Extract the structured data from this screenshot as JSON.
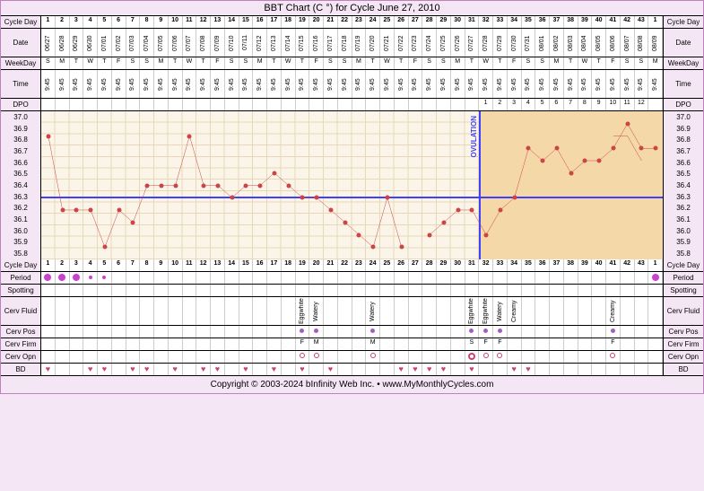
{
  "title": "BBT Chart (C °) for Cycle June 27, 2010",
  "footer": "Copyright © 2003-2024 bInfinity Web Inc.   •   www.MyMonthlyCycles.com",
  "rowLabels": {
    "cycleDay": "Cycle Day",
    "date": "Date",
    "weekday": "WeekDay",
    "time": "Time",
    "dpo": "DPO",
    "period": "Period",
    "spotting": "Spotting",
    "cervFluid": "Cerv Fluid",
    "cervPos": "Cerv Pos",
    "cervFirm": "Cerv Firm",
    "cervOpn": "Cerv Opn",
    "bd": "BD"
  },
  "yAxis": {
    "values": [
      "37.0",
      "36.9",
      "36.8",
      "36.7",
      "36.6",
      "36.5",
      "36.4",
      "36.3",
      "36.2",
      "36.1",
      "36.0",
      "35.9",
      "35.8"
    ],
    "min": 35.8,
    "max": 37.0
  },
  "cycleDays": [
    1,
    2,
    3,
    4,
    5,
    6,
    7,
    8,
    9,
    10,
    11,
    12,
    13,
    14,
    15,
    16,
    17,
    18,
    19,
    20,
    21,
    22,
    23,
    24,
    25,
    26,
    27,
    28,
    29,
    30,
    31,
    32,
    33,
    34,
    35,
    36,
    37,
    38,
    39,
    40,
    41,
    42,
    43,
    1
  ],
  "dates": [
    "06/27",
    "06/28",
    "06/29",
    "06/30",
    "07/01",
    "07/02",
    "07/03",
    "07/04",
    "07/05",
    "07/06",
    "07/07",
    "07/08",
    "07/09",
    "07/10",
    "07/11",
    "07/12",
    "07/13",
    "07/14",
    "07/15",
    "07/16",
    "07/17",
    "07/18",
    "07/19",
    "07/20",
    "07/21",
    "07/22",
    "07/23",
    "07/24",
    "07/25",
    "07/26",
    "07/27",
    "07/28",
    "07/29",
    "07/30",
    "07/31",
    "08/01",
    "08/02",
    "08/03",
    "08/04",
    "08/05",
    "08/06",
    "08/07",
    "08/08",
    "08/09"
  ],
  "weekdays": [
    "S",
    "M",
    "T",
    "W",
    "T",
    "F",
    "S",
    "S",
    "M",
    "T",
    "W",
    "T",
    "F",
    "S",
    "S",
    "M",
    "T",
    "W",
    "T",
    "F",
    "S",
    "S",
    "M",
    "T",
    "W",
    "T",
    "F",
    "S",
    "S",
    "M",
    "T",
    "W",
    "T",
    "F",
    "S",
    "S",
    "M",
    "T",
    "W",
    "T",
    "F",
    "S",
    "S",
    "M"
  ],
  "times": [
    "9:45",
    "9:45",
    "9:45",
    "9:45",
    "9:45",
    "9:45",
    "9:45",
    "9:45",
    "9:45",
    "9:45",
    "9:45",
    "9:45",
    "9:45",
    "9:45",
    "9:45",
    "9:45",
    "9:45",
    "9:45",
    "9:45",
    "9:45",
    "9:45",
    "9:45",
    "9:45",
    "9:45",
    "9:45",
    "9:45",
    "9:45",
    "9:45",
    "9:45",
    "9:45",
    "9:45",
    "9:45",
    "9:45",
    "9:45",
    "9:45",
    "9:45",
    "9:45",
    "9:45",
    "9:45",
    "9:45",
    "9:45",
    "9:45",
    "9:45",
    "9:45"
  ],
  "dpo": [
    "",
    "",
    "",
    "",
    "",
    "",
    "",
    "",
    "",
    "",
    "",
    "",
    "",
    "",
    "",
    "",
    "",
    "",
    "",
    "",
    "",
    "",
    "",
    "",
    "",
    "",
    "",
    "",
    "",
    "",
    "",
    "1",
    "2",
    "3",
    "4",
    "5",
    "6",
    "7",
    "8",
    "9",
    "10",
    "11",
    "12",
    ""
  ],
  "temps": [
    36.8,
    36.2,
    36.2,
    36.2,
    35.9,
    36.2,
    36.1,
    36.4,
    36.4,
    36.4,
    36.8,
    36.4,
    36.4,
    36.3,
    36.4,
    36.4,
    36.5,
    36.4,
    36.3,
    36.3,
    36.2,
    36.1,
    36.0,
    35.9,
    36.3,
    35.9,
    null,
    36.0,
    36.1,
    36.2,
    36.2,
    36.0,
    36.2,
    36.3,
    36.7,
    36.6,
    36.7,
    36.5,
    36.6,
    36.6,
    36.7,
    36.9,
    36.7,
    36.7
  ],
  "temps2": [
    36.8,
    36.8,
    36.6,
    null
  ],
  "coverline": 36.3,
  "ovulationDay": 31,
  "lutealStart": 32,
  "periodDays": {
    "1": "full",
    "2": "full",
    "3": "full",
    "4": "sm",
    "5": "sm",
    "44": "full"
  },
  "cervFluid": {
    "19": "Eggwhite",
    "20": "Watery",
    "24": "Watery",
    "31": "Eggwhite",
    "32": "Eggwhite",
    "33": "Watery",
    "34": "Creamy",
    "41": "Creamy"
  },
  "cervPos": {
    "19": true,
    "20": true,
    "24": true,
    "31": true,
    "32": true,
    "33": true,
    "41": true
  },
  "cervFirm": {
    "19": "F",
    "20": "M",
    "24": "M",
    "31": "S",
    "32": "F",
    "33": "F",
    "41": "F"
  },
  "cervOpn": {
    "19": "c",
    "20": "c",
    "24": "c",
    "31": "lg",
    "32": "c",
    "33": "c",
    "41": "c"
  },
  "bd": [
    1,
    4,
    5,
    7,
    8,
    10,
    12,
    13,
    15,
    17,
    19,
    21,
    26,
    27,
    28,
    29,
    31,
    34,
    35
  ],
  "colors": {
    "line": "#cc4444",
    "bg": "#faf5e8",
    "luteal": "#f5d8a8",
    "cover": "#4040ff"
  }
}
